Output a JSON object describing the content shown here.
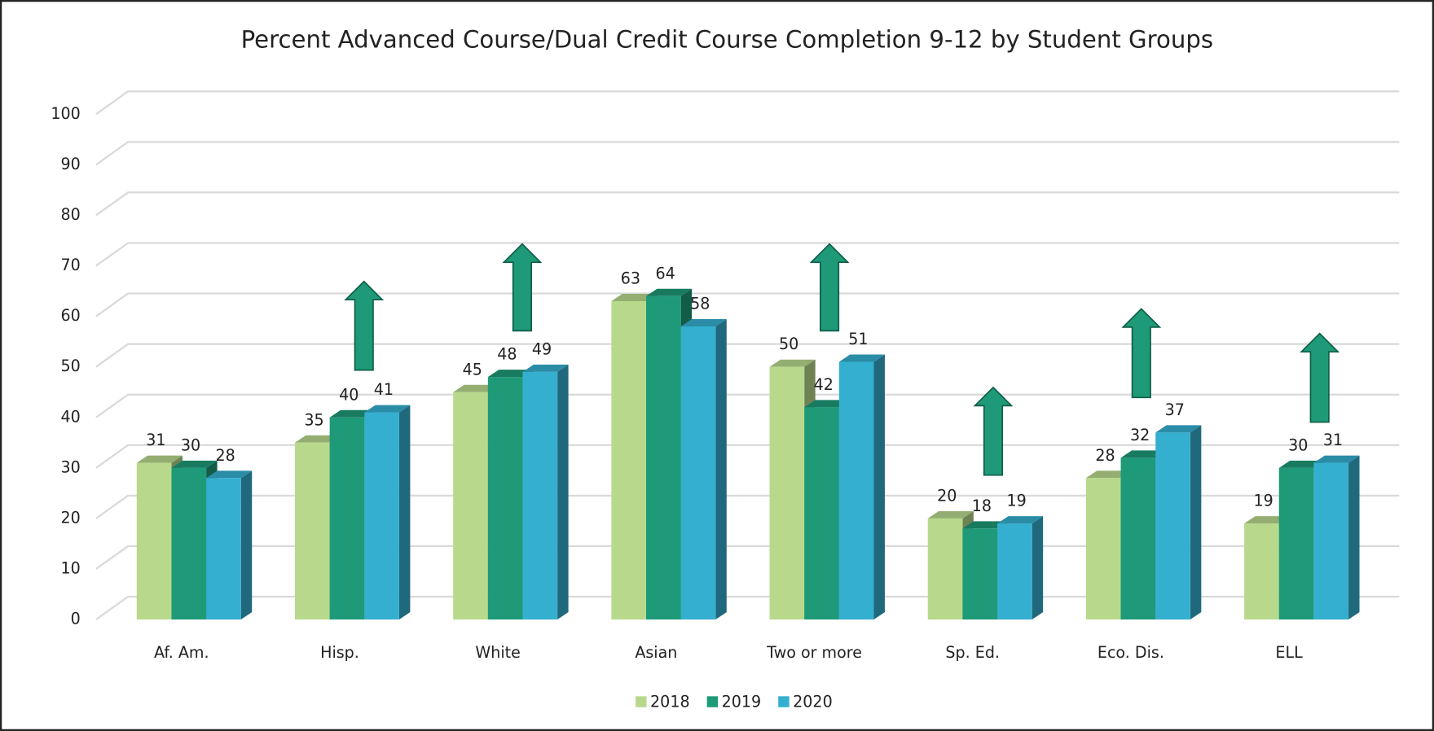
{
  "chart_data": {
    "type": "bar3d",
    "title": "Percent Advanced Course/Dual Credit Course Completion 9-12 by Student Groups",
    "categories": [
      "Af. Am.",
      "Hisp.",
      "White",
      "Asian",
      "Two or more",
      "Sp. Ed.",
      "Eco. Dis.",
      "ELL"
    ],
    "series": [
      {
        "name": "2018",
        "color": "#b8d98c",
        "values": [
          31,
          35,
          45,
          63,
          50,
          20,
          28,
          19
        ]
      },
      {
        "name": "2019",
        "color": "#1e9a78",
        "values": [
          30,
          40,
          48,
          64,
          42,
          18,
          32,
          30
        ]
      },
      {
        "name": "2020",
        "color": "#35afd0",
        "values": [
          28,
          41,
          49,
          58,
          51,
          19,
          37,
          31
        ]
      }
    ],
    "ylim": [
      0,
      100
    ],
    "yticks": [
      0,
      10,
      20,
      30,
      40,
      50,
      60,
      70,
      80,
      90,
      100
    ],
    "grid": true,
    "legend": "bottom"
  }
}
